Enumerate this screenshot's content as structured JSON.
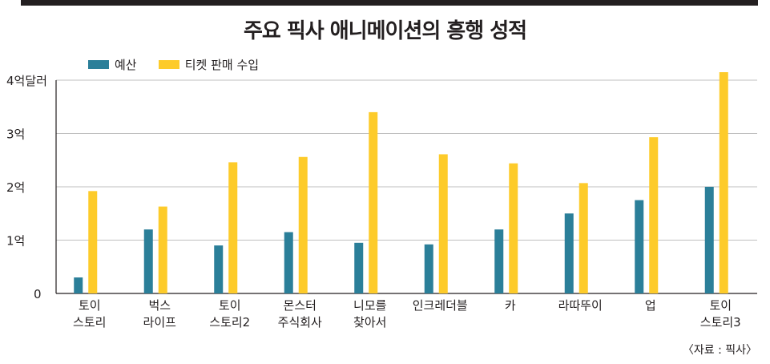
{
  "colors": {
    "budget": "#2b7f99",
    "ticket": "#fdcb2a",
    "grid": "#bfbfbf",
    "axis": "#231f20"
  },
  "source": "〈자료 : 픽사〉",
  "chart_data": {
    "type": "bar",
    "title": "주요 픽사 애니메이션의 흥행 성적",
    "ylim": [
      0,
      4
    ],
    "yticks": [
      {
        "value": 0,
        "label": "0"
      },
      {
        "value": 1,
        "label": "1억"
      },
      {
        "value": 2,
        "label": "2억"
      },
      {
        "value": 3,
        "label": "3억"
      },
      {
        "value": 4,
        "label": "4억달러"
      }
    ],
    "grid": true,
    "legend_position": "top-left",
    "categories": [
      [
        "토이",
        "스토리"
      ],
      [
        "벅스",
        "라이프"
      ],
      [
        "토이",
        "스토리2"
      ],
      [
        "몬스터",
        "주식회사"
      ],
      [
        "니모를",
        "찾아서"
      ],
      [
        "인크레더블"
      ],
      [
        "카"
      ],
      [
        "라따뚜이"
      ],
      [
        "업"
      ],
      [
        "토이",
        "스토리3"
      ]
    ],
    "series": [
      {
        "name": "예산",
        "values": [
          0.3,
          1.2,
          0.9,
          1.15,
          0.95,
          0.92,
          1.2,
          1.5,
          1.75,
          2.0
        ]
      },
      {
        "name": "티켓 판매 수입",
        "values": [
          1.92,
          1.63,
          2.46,
          2.56,
          3.4,
          2.61,
          2.44,
          2.07,
          2.93,
          4.15
        ]
      }
    ]
  }
}
